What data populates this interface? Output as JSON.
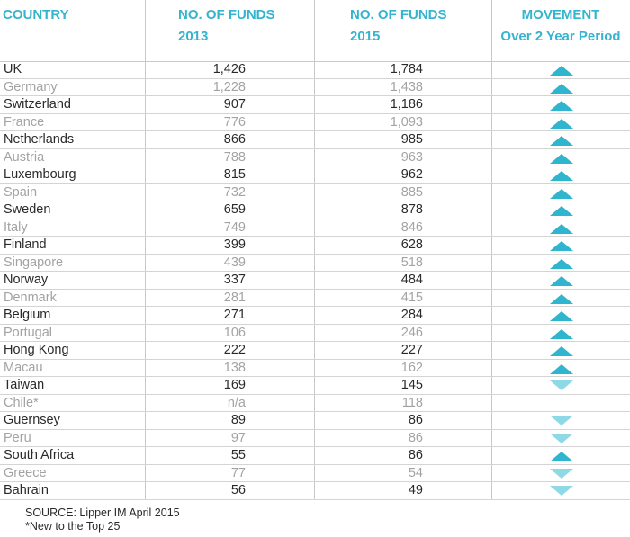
{
  "headers": {
    "country": "COUNTRY",
    "funds2013_line1": "NO. OF FUNDS",
    "funds2013_line2": "2013",
    "funds2015_line1": "NO. OF FUNDS",
    "funds2015_line2": "2015",
    "movement_line1": "MOVEMENT",
    "movement_line2": "Over 2 Year Period"
  },
  "colors": {
    "header": "#35b4cf",
    "arrow_up": "#2fb5cd",
    "arrow_down": "#8fd8e6"
  },
  "rows": [
    {
      "country": "UK",
      "funds_2013": "1,426",
      "funds_2015": "1,784",
      "movement": "up"
    },
    {
      "country": "Germany",
      "funds_2013": "1,228",
      "funds_2015": "1,438",
      "movement": "up"
    },
    {
      "country": "Switzerland",
      "funds_2013": "907",
      "funds_2015": "1,186",
      "movement": "up"
    },
    {
      "country": "France",
      "funds_2013": "776",
      "funds_2015": "1,093",
      "movement": "up"
    },
    {
      "country": "Netherlands",
      "funds_2013": "866",
      "funds_2015": "985",
      "movement": "up"
    },
    {
      "country": "Austria",
      "funds_2013": "788",
      "funds_2015": "963",
      "movement": "up"
    },
    {
      "country": "Luxembourg",
      "funds_2013": "815",
      "funds_2015": "962",
      "movement": "up"
    },
    {
      "country": "Spain",
      "funds_2013": "732",
      "funds_2015": "885",
      "movement": "up"
    },
    {
      "country": "Sweden",
      "funds_2013": "659",
      "funds_2015": "878",
      "movement": "up"
    },
    {
      "country": "Italy",
      "funds_2013": "749",
      "funds_2015": "846",
      "movement": "up"
    },
    {
      "country": "Finland",
      "funds_2013": "399",
      "funds_2015": "628",
      "movement": "up"
    },
    {
      "country": "Singapore",
      "funds_2013": "439",
      "funds_2015": "518",
      "movement": "up"
    },
    {
      "country": "Norway",
      "funds_2013": "337",
      "funds_2015": "484",
      "movement": "up"
    },
    {
      "country": "Denmark",
      "funds_2013": "281",
      "funds_2015": "415",
      "movement": "up"
    },
    {
      "country": "Belgium",
      "funds_2013": "271",
      "funds_2015": "284",
      "movement": "up"
    },
    {
      "country": "Portugal",
      "funds_2013": "106",
      "funds_2015": "246",
      "movement": "up"
    },
    {
      "country": "Hong Kong",
      "funds_2013": "222",
      "funds_2015": "227",
      "movement": "up"
    },
    {
      "country": "Macau",
      "funds_2013": "138",
      "funds_2015": "162",
      "movement": "up"
    },
    {
      "country": "Taiwan",
      "funds_2013": "169",
      "funds_2015": "145",
      "movement": "down"
    },
    {
      "country": "Chile*",
      "funds_2013": "n/a",
      "funds_2015": "118",
      "movement": "none"
    },
    {
      "country": "Guernsey",
      "funds_2013": "89",
      "funds_2015": "86",
      "movement": "down"
    },
    {
      "country": "Peru",
      "funds_2013": "97",
      "funds_2015": "86",
      "movement": "down"
    },
    {
      "country": "South Africa",
      "funds_2013": "55",
      "funds_2015": "86",
      "movement": "up"
    },
    {
      "country": "Greece",
      "funds_2013": "77",
      "funds_2015": "54",
      "movement": "down"
    },
    {
      "country": "Bahrain",
      "funds_2013": "56",
      "funds_2015": "49",
      "movement": "down"
    }
  ],
  "footer": {
    "source": "SOURCE: Lipper IM April 2015",
    "note": "*New to the Top 25"
  }
}
